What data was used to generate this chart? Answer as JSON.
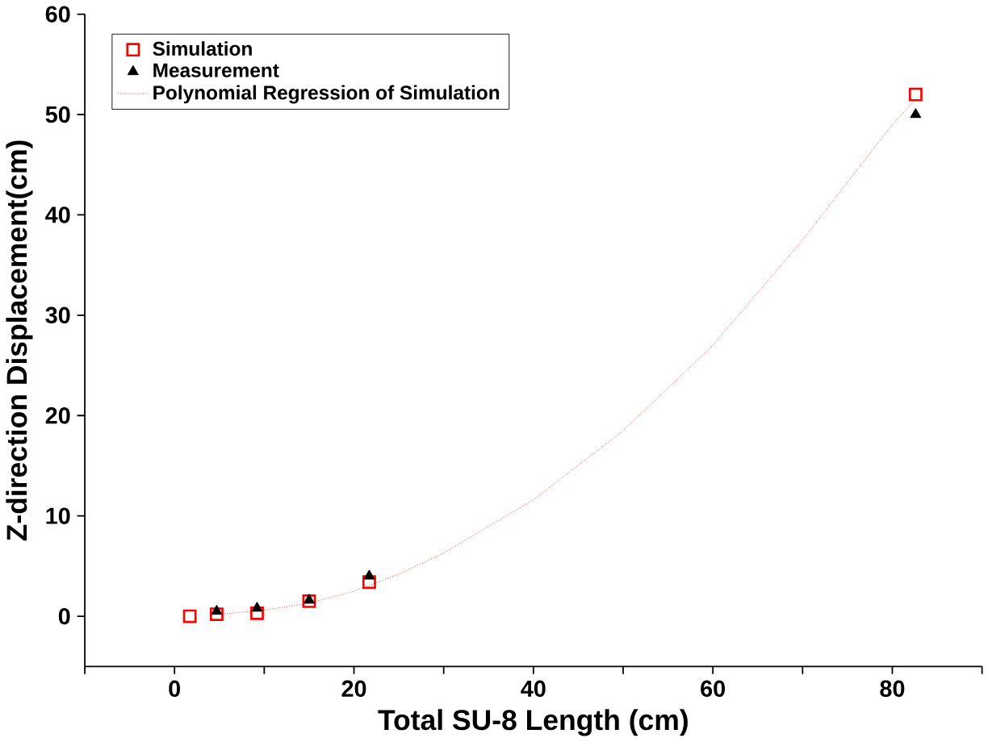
{
  "chart_data": {
    "type": "scatter",
    "xlabel": "Total SU-8 Length (cm)",
    "ylabel": "Z-direction Displacement(cm)",
    "xlim": [
      -10,
      90
    ],
    "ylim": [
      -5,
      60
    ],
    "xticks": [
      {
        "value": -10,
        "label": null
      },
      0,
      {
        "value": 10,
        "label": null
      },
      20,
      {
        "value": 30,
        "label": null
      },
      40,
      {
        "value": 50,
        "label": null
      },
      60,
      {
        "value": 70,
        "label": null
      },
      80,
      {
        "value": 90,
        "label": null
      }
    ],
    "yticks": [
      0,
      10,
      20,
      30,
      40,
      50,
      60
    ],
    "legend": "top left",
    "grid": false,
    "series": [
      {
        "name": "Simulation",
        "color": "#ff0000",
        "marker": "square",
        "x": [
          1.7,
          4.7,
          9.2,
          15,
          21.7,
          82.6
        ],
        "values": [
          0,
          0.2,
          0.3,
          1.5,
          3.4,
          52
        ]
      },
      {
        "name": "Measurement",
        "color": "#000000",
        "marker": "triangle",
        "x": [
          4.7,
          9.2,
          15,
          21.7,
          82.6
        ],
        "values": [
          0.5,
          0.8,
          1.6,
          4,
          50
        ]
      },
      {
        "name": "Polynomial Regression of Simulation",
        "type": "line",
        "color": "#ff0000",
        "marker": "none",
        "line_style": "dotted",
        "x": [
          5,
          10,
          15,
          20,
          25,
          30,
          40,
          50,
          60,
          70,
          80,
          82.6
        ],
        "values": [
          0.2,
          0.6,
          1.3,
          2.5,
          4.2,
          6.3,
          11.6,
          18.5,
          27,
          37.5,
          49,
          51.5
        ]
      }
    ]
  }
}
